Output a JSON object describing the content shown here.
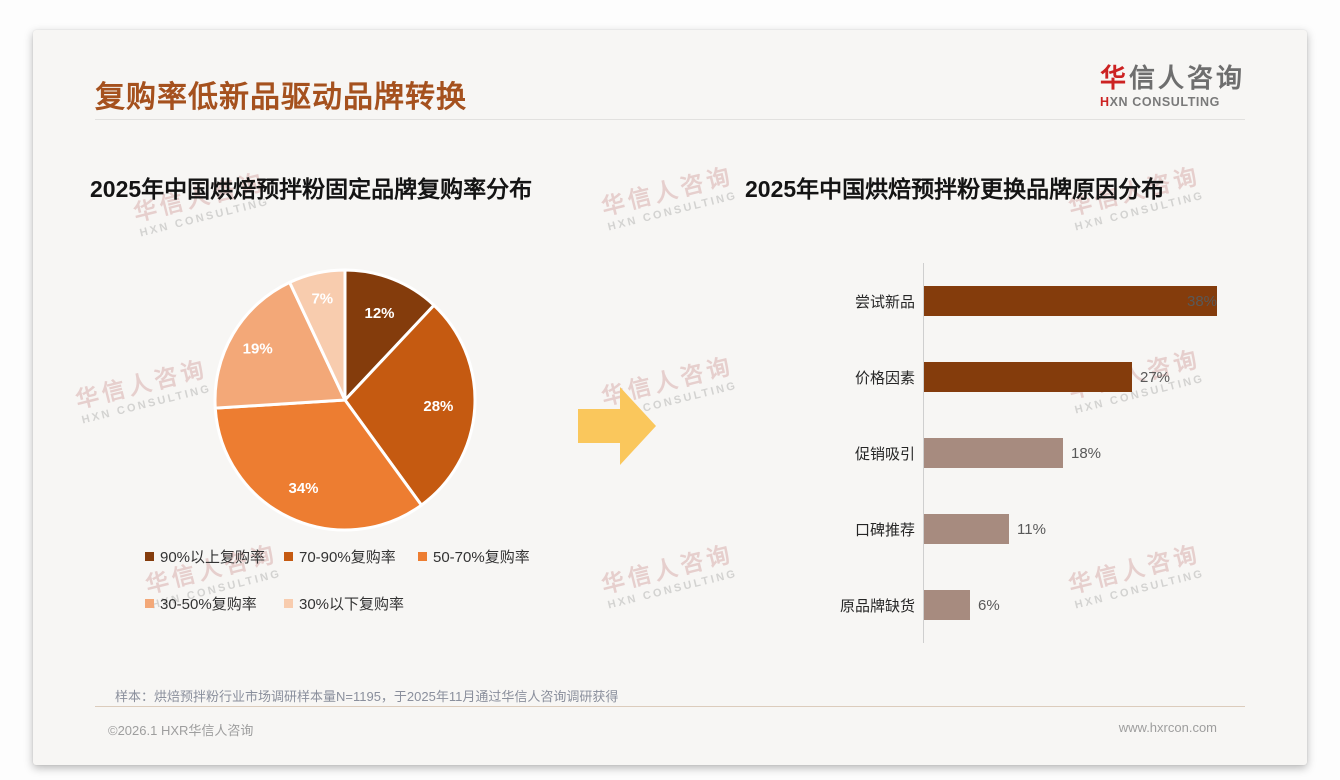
{
  "page": {
    "title": "复购率低新品驱动品牌转换",
    "logo": {
      "zh_red": "华",
      "zh_rest": "信人咨询",
      "en_red": "H",
      "en_rest": "XN CONSULTING"
    },
    "watermark": {
      "zh": "华信人咨询",
      "en": "HXN CONSULTING"
    },
    "footer": {
      "sample_note": "样本：烘焙预拌粉行业市场调研样本量N=1195，于2025年11月通过华信人咨询调研获得",
      "copyright": "©2026.1 HXR华信人咨询",
      "website": "www.hxrcon.com"
    },
    "colors": {
      "title_accent": "#a5511e",
      "logo_red": "#cc2222",
      "arrow_yellow": "#fac75c",
      "card_bg": "#f7f6f4"
    }
  },
  "chart_data": [
    {
      "type": "pie",
      "title": "2025年中国烘焙预拌粉固定品牌复购率分布",
      "labels": [
        "90%以上复购率",
        "70-90%复购率",
        "50-70%复购率",
        "30-50%复购率",
        "30%以下复购率"
      ],
      "values": [
        12,
        28,
        34,
        19,
        7
      ],
      "data_labels": [
        "12%",
        "28%",
        "34%",
        "19%",
        "7%"
      ],
      "colors": [
        "#843C0C",
        "#C55A11",
        "#ED7D31",
        "#F3A878",
        "#F8CCAE"
      ],
      "start_angle": "top, clockwise",
      "legend_position": "bottom"
    },
    {
      "type": "bar",
      "title": "2025年中国烘焙预拌粉更换品牌原因分布",
      "orientation": "horizontal",
      "categories": [
        "尝试新品",
        "价格因素",
        "促销吸引",
        "口碑推荐",
        "原品牌缺货"
      ],
      "values": [
        38,
        27,
        18,
        11,
        6
      ],
      "value_labels": [
        "38%",
        "27%",
        "18%",
        "11%",
        "6%"
      ],
      "bar_colors": [
        "#843C0C",
        "#843C0C",
        "#A78B7F",
        "#A78B7F",
        "#A78B7F"
      ],
      "xlim": [
        0,
        40
      ],
      "grid": false,
      "legend_position": "none"
    }
  ]
}
